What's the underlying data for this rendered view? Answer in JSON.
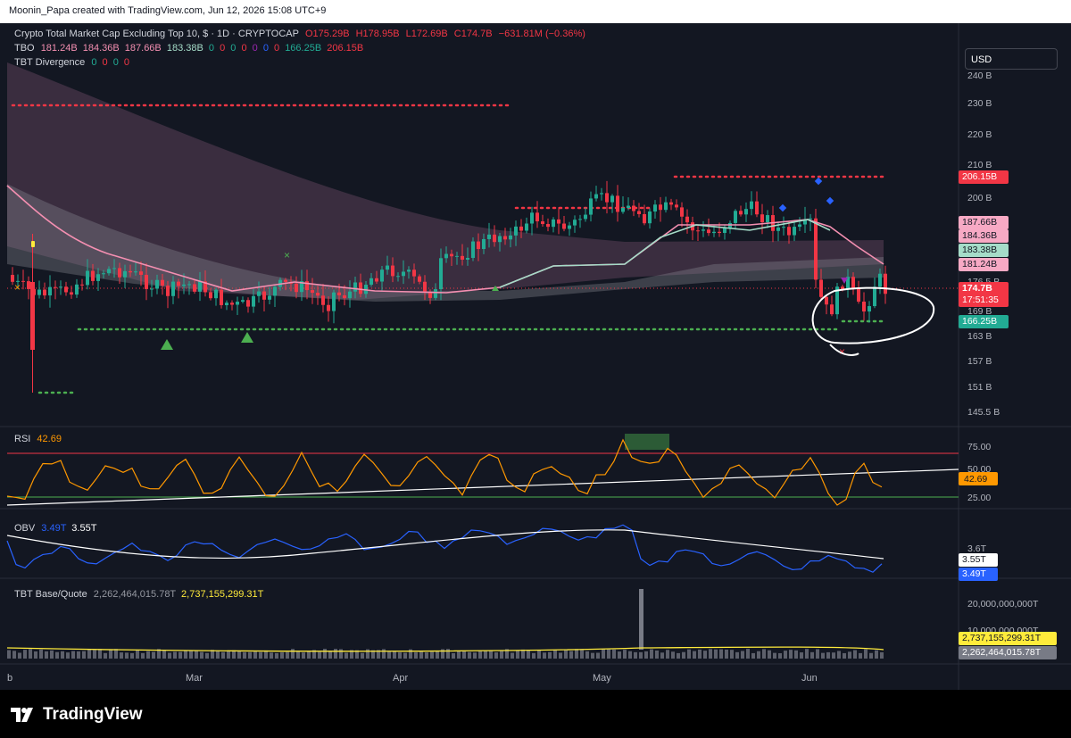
{
  "header": {
    "caption": "Moonin_Papa created with TradingView.com, Jun 12, 2026 15:08 UTC+9"
  },
  "currency_button": "USD",
  "legend": {
    "symbol": "Crypto Total Market Cap Excluding Top 10, $ · 1D · CRYPTOCAP",
    "ohlc": {
      "o": "O175.29B",
      "h": "H178.95B",
      "l": "L172.69B",
      "c": "C174.7B",
      "chg": "−631.81M (−0.36%)"
    },
    "tbo_label": "TBO",
    "tbo_values": [
      "181.24B",
      "184.36B",
      "187.66B",
      "183.38B",
      "0",
      "0",
      "0",
      "0",
      "0",
      "0",
      "0",
      "166.25B",
      "206.15B"
    ],
    "tbt_div_label": "TBT Divergence",
    "tbt_div_values": [
      "0",
      "0",
      "0",
      "0"
    ]
  },
  "price_axis_labels": [
    "240 B",
    "230 B",
    "220 B",
    "210 B",
    "200 B",
    "176.5 B",
    "169 B",
    "163 B",
    "157 B",
    "151 B",
    "145.5 B"
  ],
  "price_tags": [
    {
      "id": "resistance",
      "text": "206.15B",
      "color": "#f23645",
      "fg": "#ffffff",
      "value": 206.15
    },
    {
      "id": "tbo3",
      "text": "187.66B",
      "color": "#f7a9c4",
      "fg": "#131722",
      "value": 187.66
    },
    {
      "id": "tbo2",
      "text": "184.36B",
      "color": "#f7a9c4",
      "fg": "#131722",
      "value": 184.36
    },
    {
      "id": "tbo4",
      "text": "183.38B",
      "color": "#a5dcc8",
      "fg": "#131722",
      "value": 183.38
    },
    {
      "id": "tbo1",
      "text": "181.24B",
      "color": "#f7a9c4",
      "fg": "#131722",
      "value": 181.24
    },
    {
      "id": "support",
      "text": "166.25B",
      "color": "#22ab94",
      "fg": "#ffffff",
      "value": 166.25
    }
  ],
  "last_price": {
    "value": "174.7B",
    "countdown": "17:51:35",
    "color": "#f23645"
  },
  "x_axis_labels": [
    "b",
    "Mar",
    "Apr",
    "May",
    "Jun"
  ],
  "rsi": {
    "label": "RSI",
    "value": "42.69",
    "levels": [
      "75.00",
      "50.00",
      "25.00"
    ],
    "upper": 75,
    "lower": 25
  },
  "obv": {
    "label": "OBV",
    "value1": "3.49T",
    "value2": "3.55T",
    "axis": "3.6T",
    "tag1": "3.55T",
    "tag2": "3.49T"
  },
  "tbt_bq": {
    "label": "TBT Base/Quote",
    "value1": "2,262,464,015.78T",
    "value2": "2,737,155,299.31T",
    "axis_top": "20,000,000,000T",
    "axis_mid": "10,000,000,000T",
    "tag1": "2,737,155,299.31T",
    "tag2": "2,262,464,015.78T"
  },
  "branding": "TradingView",
  "colors": {
    "bg": "#131722",
    "up": "#22ab94",
    "down": "#f23645",
    "rsi": "#ff9800",
    "obv": "#2962ff",
    "tbo_pink": "#f48fb1",
    "tbo_teal": "#a5dcc8"
  }
}
